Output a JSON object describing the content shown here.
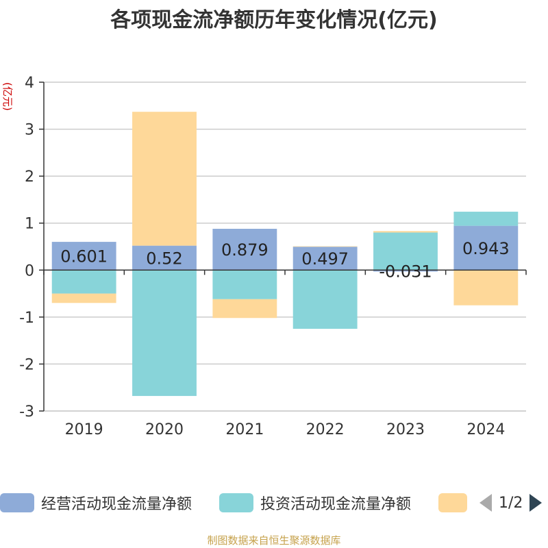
{
  "title": "各项现金流净额历年变化情况(亿元)",
  "footer": "制图数据来自恒生聚源数据库",
  "legend_page": "1/2",
  "chart_data": {
    "type": "bar",
    "stacked": true,
    "title": "各项现金流净额历年变化情况(亿元)",
    "ylabel": "(亿元)",
    "ylim": [
      -3,
      4
    ],
    "yticks": [
      "-3",
      "-2",
      "-1",
      "0",
      "1",
      "2",
      "3",
      "4"
    ],
    "categories": [
      "2019",
      "2020",
      "2021",
      "2022",
      "2023",
      "2024"
    ],
    "series": [
      {
        "name": "经营活动现金流量净额",
        "color": "#8eabd8",
        "values": [
          0.601,
          0.52,
          0.879,
          0.497,
          -0.031,
          0.943
        ],
        "labels": [
          "0.601",
          "0.52",
          "0.879",
          "0.497",
          "-0.031",
          "0.943"
        ]
      },
      {
        "name": "投资活动现金流量净额",
        "color": "#88d4d9",
        "values": [
          -0.5,
          -2.68,
          -0.62,
          -1.25,
          0.8,
          0.3
        ]
      },
      {
        "name": "",
        "color": "#fed899",
        "values": [
          -0.2,
          2.85,
          -0.4,
          0.01,
          0.03,
          -0.75
        ]
      }
    ]
  }
}
